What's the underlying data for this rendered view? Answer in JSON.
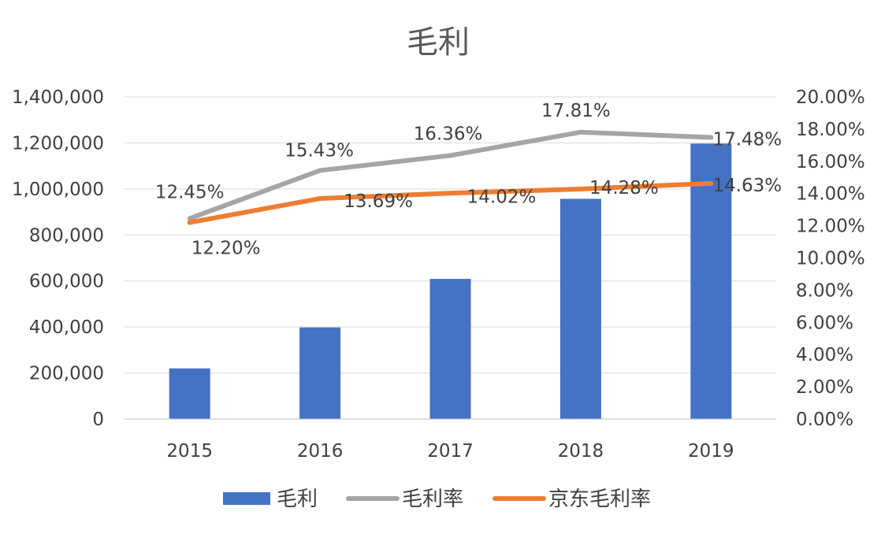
{
  "chart_data": {
    "type": "bar",
    "title": "毛利",
    "categories": [
      "2015",
      "2016",
      "2017",
      "2018",
      "2019"
    ],
    "series": [
      {
        "name": "毛利",
        "type": "bar",
        "axis": "left",
        "color": "#4472C4",
        "values": [
          220000,
          398000,
          609000,
          957000,
          1197000
        ]
      },
      {
        "name": "毛利率",
        "type": "line",
        "axis": "right",
        "color": "#A5A5A5",
        "values": [
          12.45,
          15.43,
          16.36,
          17.81,
          17.48
        ],
        "labels": [
          "12.45%",
          "15.43%",
          "16.36%",
          "17.81%",
          "17.48%"
        ]
      },
      {
        "name": "京东毛利率",
        "type": "line",
        "axis": "right",
        "color": "#ED7D31",
        "values": [
          12.2,
          13.69,
          14.02,
          14.28,
          14.63
        ],
        "labels": [
          "12.20%",
          "13.69%",
          "14.02%",
          "14.28%",
          "14.63%"
        ]
      }
    ],
    "y_left": {
      "min": 0,
      "max": 1400000,
      "ticks": [
        "0",
        "200,000",
        "400,000",
        "600,000",
        "800,000",
        "1,000,000",
        "1,200,000",
        "1,400,000"
      ]
    },
    "y_right": {
      "min": 0,
      "max": 20,
      "ticks": [
        "0.00%",
        "2.00%",
        "4.00%",
        "6.00%",
        "8.00%",
        "10.00%",
        "12.00%",
        "14.00%",
        "16.00%",
        "18.00%",
        "20.00%"
      ]
    },
    "grid": true,
    "legend": "bottom"
  }
}
